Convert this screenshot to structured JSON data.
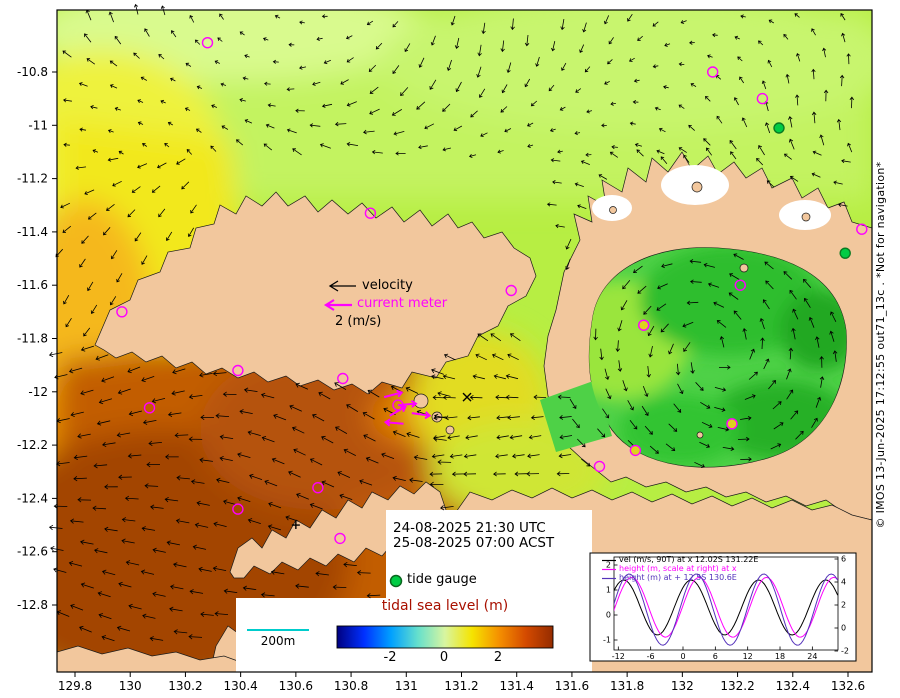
{
  "figure": {
    "copyright": "© IMOS 13-Jun-2025 17:12:55 out71_13c . *Not for navigation*",
    "axes": {
      "x_ticks": [
        "129.8",
        "130",
        "130.2",
        "130.4",
        "130.6",
        "130.8",
        "131",
        "131.2",
        "131.4",
        "131.6",
        "131.8",
        "132",
        "132.2",
        "132.4",
        "132.6"
      ],
      "y_ticks": [
        "-10.8",
        "-11",
        "-11.2",
        "-11.4",
        "-11.6",
        "-11.8",
        "-12",
        "-12.2",
        "-12.4",
        "-12.6",
        "-12.8"
      ]
    },
    "overlay": {
      "velocity_label": "velocity",
      "current_meter_label": "current meter",
      "velocity_scale_label": "2 (m/s)",
      "timestamp_utc": "24-08-2025 21:30 UTC",
      "timestamp_acst": "25-08-2025 07:00 ACST",
      "tide_gauge_label": "tide gauge",
      "scalebar_label": "200m",
      "colorbar_title": "tidal sea level (m)",
      "colorbar_ticks": [
        "-2",
        "0",
        "2"
      ]
    },
    "inset": {
      "legend": [
        {
          "label": "vel (m/s, 90T) at x 12.02S 131.22E",
          "color": "#000000"
        },
        {
          "label": "height (m, scale at right) at x",
          "color": "#ff00ff"
        },
        {
          "label": "height (m) at + 12.5S 130.6E",
          "color": "#5533bb"
        }
      ],
      "x_ticks": [
        "-12",
        "-6",
        "0",
        "6",
        "12",
        "18",
        "24"
      ],
      "y_left_ticks": [
        "2",
        "1",
        "0",
        "-1"
      ],
      "y_right_ticks": [
        "6",
        "4",
        "2",
        "0",
        "-2"
      ]
    }
  },
  "colors": {
    "colorbar_stops": [
      "#000080",
      "#0030ff",
      "#00a0ff",
      "#66e0cc",
      "#d8f5a0",
      "#f5e400",
      "#f59000",
      "#d44a00",
      "#952c00"
    ],
    "land": "#f2c79d",
    "tide_gauge_green": "#00cc44",
    "current_meter_magenta": "#ff00ff",
    "scalebar_cyan": "#00cccc",
    "colorbar_title_red": "#a81000"
  },
  "chart_data": [
    {
      "type": "heatmap",
      "name": "tidal-sea-level-map",
      "title": "tidal sea level (m)",
      "x_range": [
        129.73,
        132.69
      ],
      "y_range": [
        -12.93,
        -10.57
      ],
      "colorbar_range": [
        -2,
        2
      ],
      "time_utc": "24-08-2025 21:30 UTC",
      "time_acst": "25-08-2025 07:00 ACST",
      "velocity_scale_mps": 2,
      "scalebar": "200m",
      "stations": [
        {
          "lon": 130.28,
          "lat": -10.69,
          "color": "magenta"
        },
        {
          "lon": 132.11,
          "lat": -10.8,
          "color": "magenta"
        },
        {
          "lon": 132.29,
          "lat": -10.9,
          "color": "magenta"
        },
        {
          "lon": 132.35,
          "lat": -11.01,
          "color": "green"
        },
        {
          "lon": 130.87,
          "lat": -11.33,
          "color": "magenta"
        },
        {
          "lon": 131.38,
          "lat": -11.62,
          "color": "magenta"
        },
        {
          "lon": 129.97,
          "lat": -11.7,
          "color": "magenta"
        },
        {
          "lon": 130.39,
          "lat": -11.92,
          "color": "magenta"
        },
        {
          "lon": 130.77,
          "lat": -11.95,
          "color": "magenta"
        },
        {
          "lon": 130.07,
          "lat": -12.06,
          "color": "magenta"
        },
        {
          "lon": 131.86,
          "lat": -11.75,
          "color": "yellow"
        },
        {
          "lon": 132.18,
          "lat": -12.12,
          "color": "yellow"
        },
        {
          "lon": 131.83,
          "lat": -12.22,
          "color": "yellow"
        },
        {
          "lon": 131.7,
          "lat": -12.28,
          "color": "magenta"
        },
        {
          "lon": 130.68,
          "lat": -12.36,
          "color": "magenta"
        },
        {
          "lon": 130.39,
          "lat": -12.44,
          "color": "magenta"
        },
        {
          "lon": 130.76,
          "lat": -12.55,
          "color": "magenta"
        },
        {
          "lon": 132.59,
          "lat": -11.48,
          "color": "green"
        },
        {
          "lon": 132.65,
          "lat": -11.39,
          "color": "magenta"
        },
        {
          "lon": 132.21,
          "lat": -11.6,
          "color": "magenta"
        },
        {
          "lon": 130.97,
          "lat": -12.05,
          "color": "magenta"
        }
      ],
      "sites": [
        {
          "symbol": "x",
          "lon": 131.22,
          "lat": -12.02
        },
        {
          "symbol": "+",
          "lon": 130.6,
          "lat": -12.5
        }
      ],
      "current_meter_vectors": [
        {
          "lon": 130.92,
          "lat": -12.02,
          "angle_deg": -15
        },
        {
          "lon": 130.97,
          "lat": -12.05,
          "angle_deg": -5
        },
        {
          "lon": 131.02,
          "lat": -12.08,
          "angle_deg": 8
        },
        {
          "lon": 130.94,
          "lat": -12.09,
          "angle_deg": -30
        },
        {
          "lon": 130.99,
          "lat": -12.12,
          "angle_deg": 185
        }
      ]
    },
    {
      "type": "line",
      "name": "tide-inset",
      "x_unit": "hours",
      "x_range": [
        -13,
        26
      ],
      "y_left_range": [
        -1.6,
        2.4
      ],
      "y_right_range": [
        -2.2,
        6.2
      ],
      "series": [
        {
          "name": "vel (m/s, 90T) at x 12.02S 131.22E",
          "color": "#000000",
          "axis": "left",
          "model": {
            "mean": 0.3,
            "amplitude": 1.1,
            "period_h": 12.5,
            "peak_x": 1.5
          },
          "samples_x": [
            -12,
            -9,
            -6,
            -3,
            0,
            3,
            6,
            9,
            12,
            15,
            18,
            21,
            24
          ],
          "samples_y": [
            1.26,
            0.89,
            -0.59,
            -0.4,
            1.1,
            1.1,
            -0.4,
            -0.59,
            0.89,
            1.26,
            -0.17,
            -0.72,
            0.64
          ]
        },
        {
          "name": "height (m, scale at right) at x",
          "color": "#ff00ff",
          "axis": "right",
          "model": {
            "mean": 1.8,
            "amplitude": 2.6,
            "period_h": 12.5,
            "peak_x": 3.0
          },
          "samples_x": [
            -12,
            -9,
            -6,
            -3,
            0,
            3,
            6,
            9,
            12,
            15,
            18,
            21,
            24
          ],
          "samples_y": [
            2.6,
            4.32,
            1.31,
            -0.78,
            1.96,
            4.4,
            1.96,
            -0.78,
            1.31,
            4.32,
            2.6,
            -0.62,
            0.69
          ]
        },
        {
          "name": "height (m) at + 12.5S 130.6E",
          "color": "#5533bb",
          "axis": "right",
          "model": {
            "mean": 1.6,
            "amplitude": 3.1,
            "period_h": 12.5,
            "peak_x": 2.5
          },
          "samples_x": [
            -12,
            -9,
            -6,
            -3,
            0,
            3,
            6,
            9,
            12,
            15,
            18,
            21,
            24
          ],
          "samples_y": [
            3.24,
            4.32,
            0.28,
            -1.28,
            2.56,
            4.6,
            1.02,
            -1.48,
            1.8,
            4.7,
            1.8,
            -1.48,
            1.02
          ]
        }
      ]
    }
  ]
}
